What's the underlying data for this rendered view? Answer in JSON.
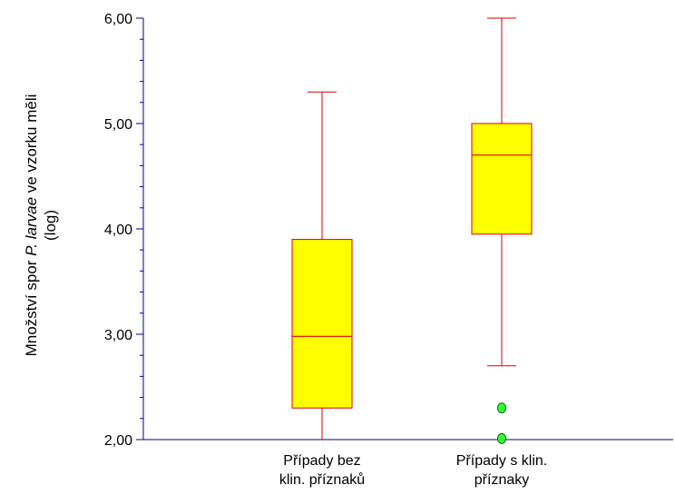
{
  "chart_data": {
    "type": "box",
    "title": "",
    "ylabel": {
      "line1_prefix": "Množství spor ",
      "line1_italic": "P. larvae",
      "line1_suffix": " ve vzorku mĕli",
      "line2": "(log)"
    },
    "ylim": [
      2.0,
      6.0
    ],
    "yticks": [
      {
        "value": 2.0,
        "label": "2,00"
      },
      {
        "value": 3.0,
        "label": "3,00"
      },
      {
        "value": 4.0,
        "label": "4,00"
      },
      {
        "value": 5.0,
        "label": "5,00"
      },
      {
        "value": 6.0,
        "label": "6,00"
      }
    ],
    "grid": false,
    "legend": "none",
    "categories": [
      {
        "label_lines": [
          "Případy bez",
          "klin. příznaků"
        ],
        "whisker_low": 2.0,
        "q1": 2.3,
        "median": 2.98,
        "q3": 3.9,
        "whisker_high": 5.3,
        "outliers": []
      },
      {
        "label_lines": [
          "Případy s klin.",
          "příznaky"
        ],
        "whisker_low": 2.7,
        "q1": 3.95,
        "median": 4.7,
        "q3": 5.0,
        "whisker_high": 6.0,
        "outliers": [
          2.3,
          2.01
        ]
      }
    ],
    "colors": {
      "axis": "#000080",
      "box_fill": "#ffff00",
      "box_stroke": "#dd0000",
      "outlier_fill": "#33ff33",
      "outlier_stroke": "#006600"
    }
  }
}
